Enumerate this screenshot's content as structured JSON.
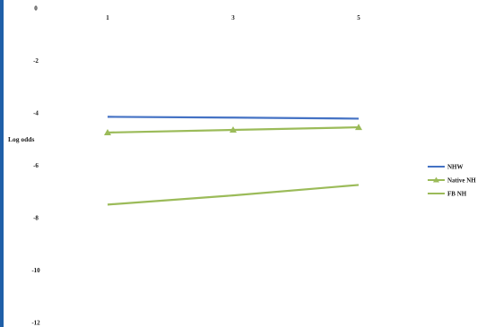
{
  "chart_data": {
    "type": "line",
    "title": "",
    "xlabel": "",
    "ylabel": "Log odds",
    "categories": [
      1,
      3,
      5
    ],
    "ylim": [
      -12,
      0
    ],
    "yticks": [
      0,
      -2,
      -4,
      -6,
      -8,
      -10,
      -12
    ],
    "series": [
      {
        "name": "NHW",
        "values": [
          -4.15,
          -4.18,
          -4.22
        ],
        "color": "#4472c4",
        "marker": "none"
      },
      {
        "name": "Native NH",
        "values": [
          -4.75,
          -4.65,
          -4.55
        ],
        "color": "#9bbb59",
        "marker": "triangle"
      },
      {
        "name": "FB NH",
        "values": [
          -7.5,
          -7.15,
          -6.75
        ],
        "color": "#9bbb59",
        "marker": "none"
      }
    ],
    "legend_position": "right",
    "grid": false
  }
}
